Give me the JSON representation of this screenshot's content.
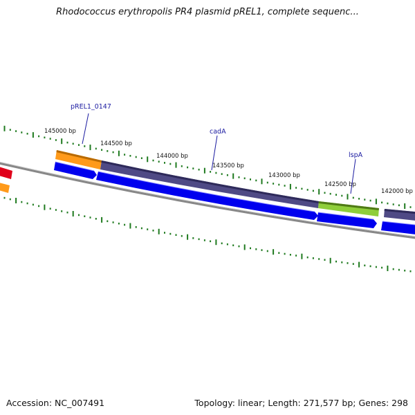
{
  "title": "Rhodococcus erythropolis PR4 plasmid pREL1, complete sequenc...",
  "footer": {
    "accession": "Accession: NC_007491",
    "summary": "Topology: linear; Length: 271,577 bp; Genes: 298"
  },
  "scale": {
    "ticks": [
      {
        "label": "145000 bp",
        "bp": 145000
      },
      {
        "label": "144500 bp",
        "bp": 144500
      },
      {
        "label": "144000 bp",
        "bp": 144000
      },
      {
        "label": "143500 bp",
        "bp": 143500
      },
      {
        "label": "143000 bp",
        "bp": 143000
      },
      {
        "label": "142500 bp",
        "bp": 142500
      },
      {
        "label": "142000 bp",
        "bp": 142000
      }
    ]
  },
  "gene_labels": [
    {
      "name": "pREL1_0147"
    },
    {
      "name": "cadA"
    },
    {
      "name": "lspA"
    }
  ],
  "colors": {
    "backbone": "#808080",
    "tick_green": "#1f7a1f",
    "cds_blue": "#0000ee",
    "feature_purple": "#4f4a85",
    "feature_orange": "#ff9a1a",
    "feature_green": "#8fce3a",
    "feature_red": "#e0001a",
    "label_blue": "#1a1aa0"
  }
}
